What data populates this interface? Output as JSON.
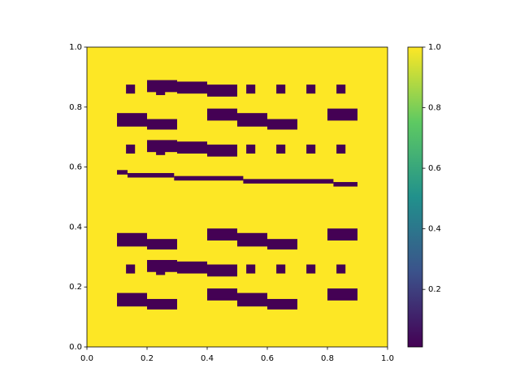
{
  "chart_data": {
    "type": "image",
    "colormap": "viridis",
    "xlim": [
      0,
      1
    ],
    "ylim": [
      0,
      1
    ],
    "xticks": [
      {
        "value": 0,
        "label": "0.0"
      },
      0.2,
      0.4,
      0.6,
      0.8,
      {
        "value": 1,
        "label": "1.0"
      }
    ],
    "yticks": [
      {
        "value": 0,
        "label": "0.0"
      },
      0.2,
      0.4,
      0.6,
      0.8,
      {
        "value": 1,
        "label": "1.0"
      }
    ],
    "clim": [
      0.01,
      1
    ],
    "cticks": [
      0.2,
      0.4,
      0.6,
      0.8,
      {
        "value": 1,
        "label": "1.0"
      }
    ],
    "background_value": 1,
    "block_value": 0.01,
    "blocks": [
      [
        0.13,
        0.16,
        0.845,
        0.875
      ],
      [
        0.53,
        0.56,
        0.845,
        0.875
      ],
      [
        0.63,
        0.66,
        0.845,
        0.875
      ],
      [
        0.73,
        0.76,
        0.845,
        0.875
      ],
      [
        0.83,
        0.86,
        0.845,
        0.875
      ],
      [
        0.2,
        0.3,
        0.85,
        0.89
      ],
      [
        0.3,
        0.4,
        0.845,
        0.885
      ],
      [
        0.4,
        0.5,
        0.835,
        0.875
      ],
      [
        0.23,
        0.26,
        0.84,
        0.855
      ],
      [
        0.1,
        0.2,
        0.735,
        0.78
      ],
      [
        0.2,
        0.3,
        0.725,
        0.76
      ],
      [
        0.4,
        0.5,
        0.755,
        0.795
      ],
      [
        0.5,
        0.6,
        0.735,
        0.78
      ],
      [
        0.6,
        0.7,
        0.725,
        0.76
      ],
      [
        0.8,
        0.9,
        0.755,
        0.795
      ],
      [
        0.13,
        0.16,
        0.645,
        0.675
      ],
      [
        0.53,
        0.56,
        0.645,
        0.675
      ],
      [
        0.63,
        0.66,
        0.645,
        0.675
      ],
      [
        0.73,
        0.76,
        0.645,
        0.675
      ],
      [
        0.83,
        0.86,
        0.645,
        0.675
      ],
      [
        0.2,
        0.3,
        0.65,
        0.69
      ],
      [
        0.3,
        0.4,
        0.645,
        0.685
      ],
      [
        0.4,
        0.5,
        0.635,
        0.675
      ],
      [
        0.23,
        0.26,
        0.64,
        0.655
      ],
      [
        0.1,
        0.135,
        0.575,
        0.59
      ],
      [
        0.135,
        0.29,
        0.565,
        0.58
      ],
      [
        0.29,
        0.52,
        0.555,
        0.57
      ],
      [
        0.52,
        0.82,
        0.545,
        0.56
      ],
      [
        0.82,
        0.9,
        0.535,
        0.55
      ],
      [
        0.1,
        0.2,
        0.335,
        0.38
      ],
      [
        0.2,
        0.3,
        0.325,
        0.36
      ],
      [
        0.4,
        0.5,
        0.355,
        0.395
      ],
      [
        0.5,
        0.6,
        0.335,
        0.38
      ],
      [
        0.6,
        0.7,
        0.325,
        0.36
      ],
      [
        0.8,
        0.9,
        0.355,
        0.395
      ],
      [
        0.13,
        0.16,
        0.245,
        0.275
      ],
      [
        0.53,
        0.56,
        0.245,
        0.275
      ],
      [
        0.63,
        0.66,
        0.245,
        0.275
      ],
      [
        0.73,
        0.76,
        0.245,
        0.275
      ],
      [
        0.83,
        0.86,
        0.245,
        0.275
      ],
      [
        0.2,
        0.3,
        0.25,
        0.29
      ],
      [
        0.3,
        0.4,
        0.245,
        0.285
      ],
      [
        0.4,
        0.5,
        0.235,
        0.275
      ],
      [
        0.23,
        0.26,
        0.24,
        0.255
      ],
      [
        0.1,
        0.2,
        0.135,
        0.18
      ],
      [
        0.2,
        0.3,
        0.125,
        0.16
      ],
      [
        0.4,
        0.5,
        0.155,
        0.195
      ],
      [
        0.5,
        0.6,
        0.135,
        0.18
      ],
      [
        0.6,
        0.7,
        0.125,
        0.16
      ],
      [
        0.8,
        0.9,
        0.155,
        0.195
      ]
    ]
  }
}
